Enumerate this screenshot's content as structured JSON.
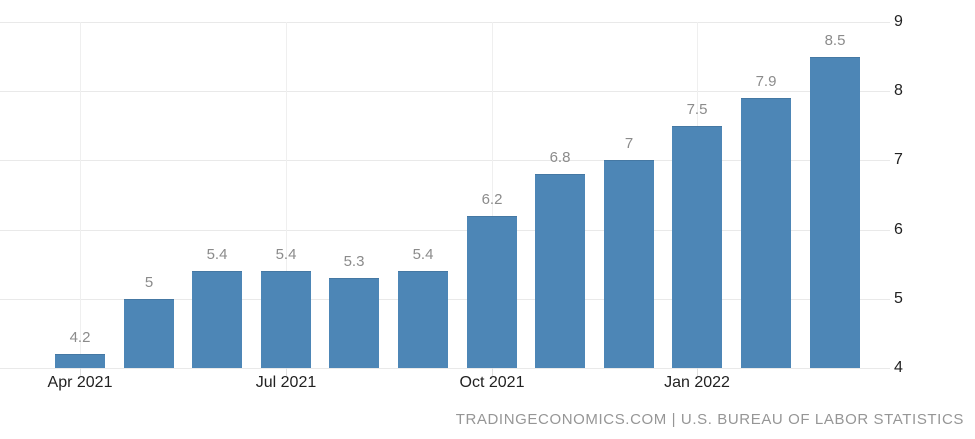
{
  "attribution": "TRADINGECONOMICS.COM | U.S. BUREAU OF LABOR STATISTICS",
  "chart_data": {
    "type": "bar",
    "values": [
      4.2,
      5,
      5.4,
      5.4,
      5.3,
      5.4,
      6.2,
      6.8,
      7,
      7.5,
      7.9,
      8.5
    ],
    "value_labels": [
      "4.2",
      "5",
      "5.4",
      "5.4",
      "5.3",
      "5.4",
      "6.2",
      "6.8",
      "7",
      "7.5",
      "7.9",
      "8.5"
    ],
    "x_ticks": [
      {
        "bar_index": 0,
        "label": "Apr 2021"
      },
      {
        "bar_index": 3,
        "label": "Jul 2021"
      },
      {
        "bar_index": 6,
        "label": "Oct 2021"
      },
      {
        "bar_index": 9,
        "label": "Jan 2022"
      }
    ],
    "y_ticks": [
      9,
      8,
      7,
      6,
      5,
      4
    ],
    "ylim": [
      4,
      9
    ],
    "grid": true,
    "legend": "none",
    "y_axis_side": "right",
    "colors": {
      "bar": "#4d86b6",
      "h_gridline": "#e9e9e9",
      "v_gridline": "#efefef",
      "value_label": "#8b8b8b",
      "axis_label": "#222222",
      "attribution": "#969696",
      "background": "#ffffff"
    }
  }
}
